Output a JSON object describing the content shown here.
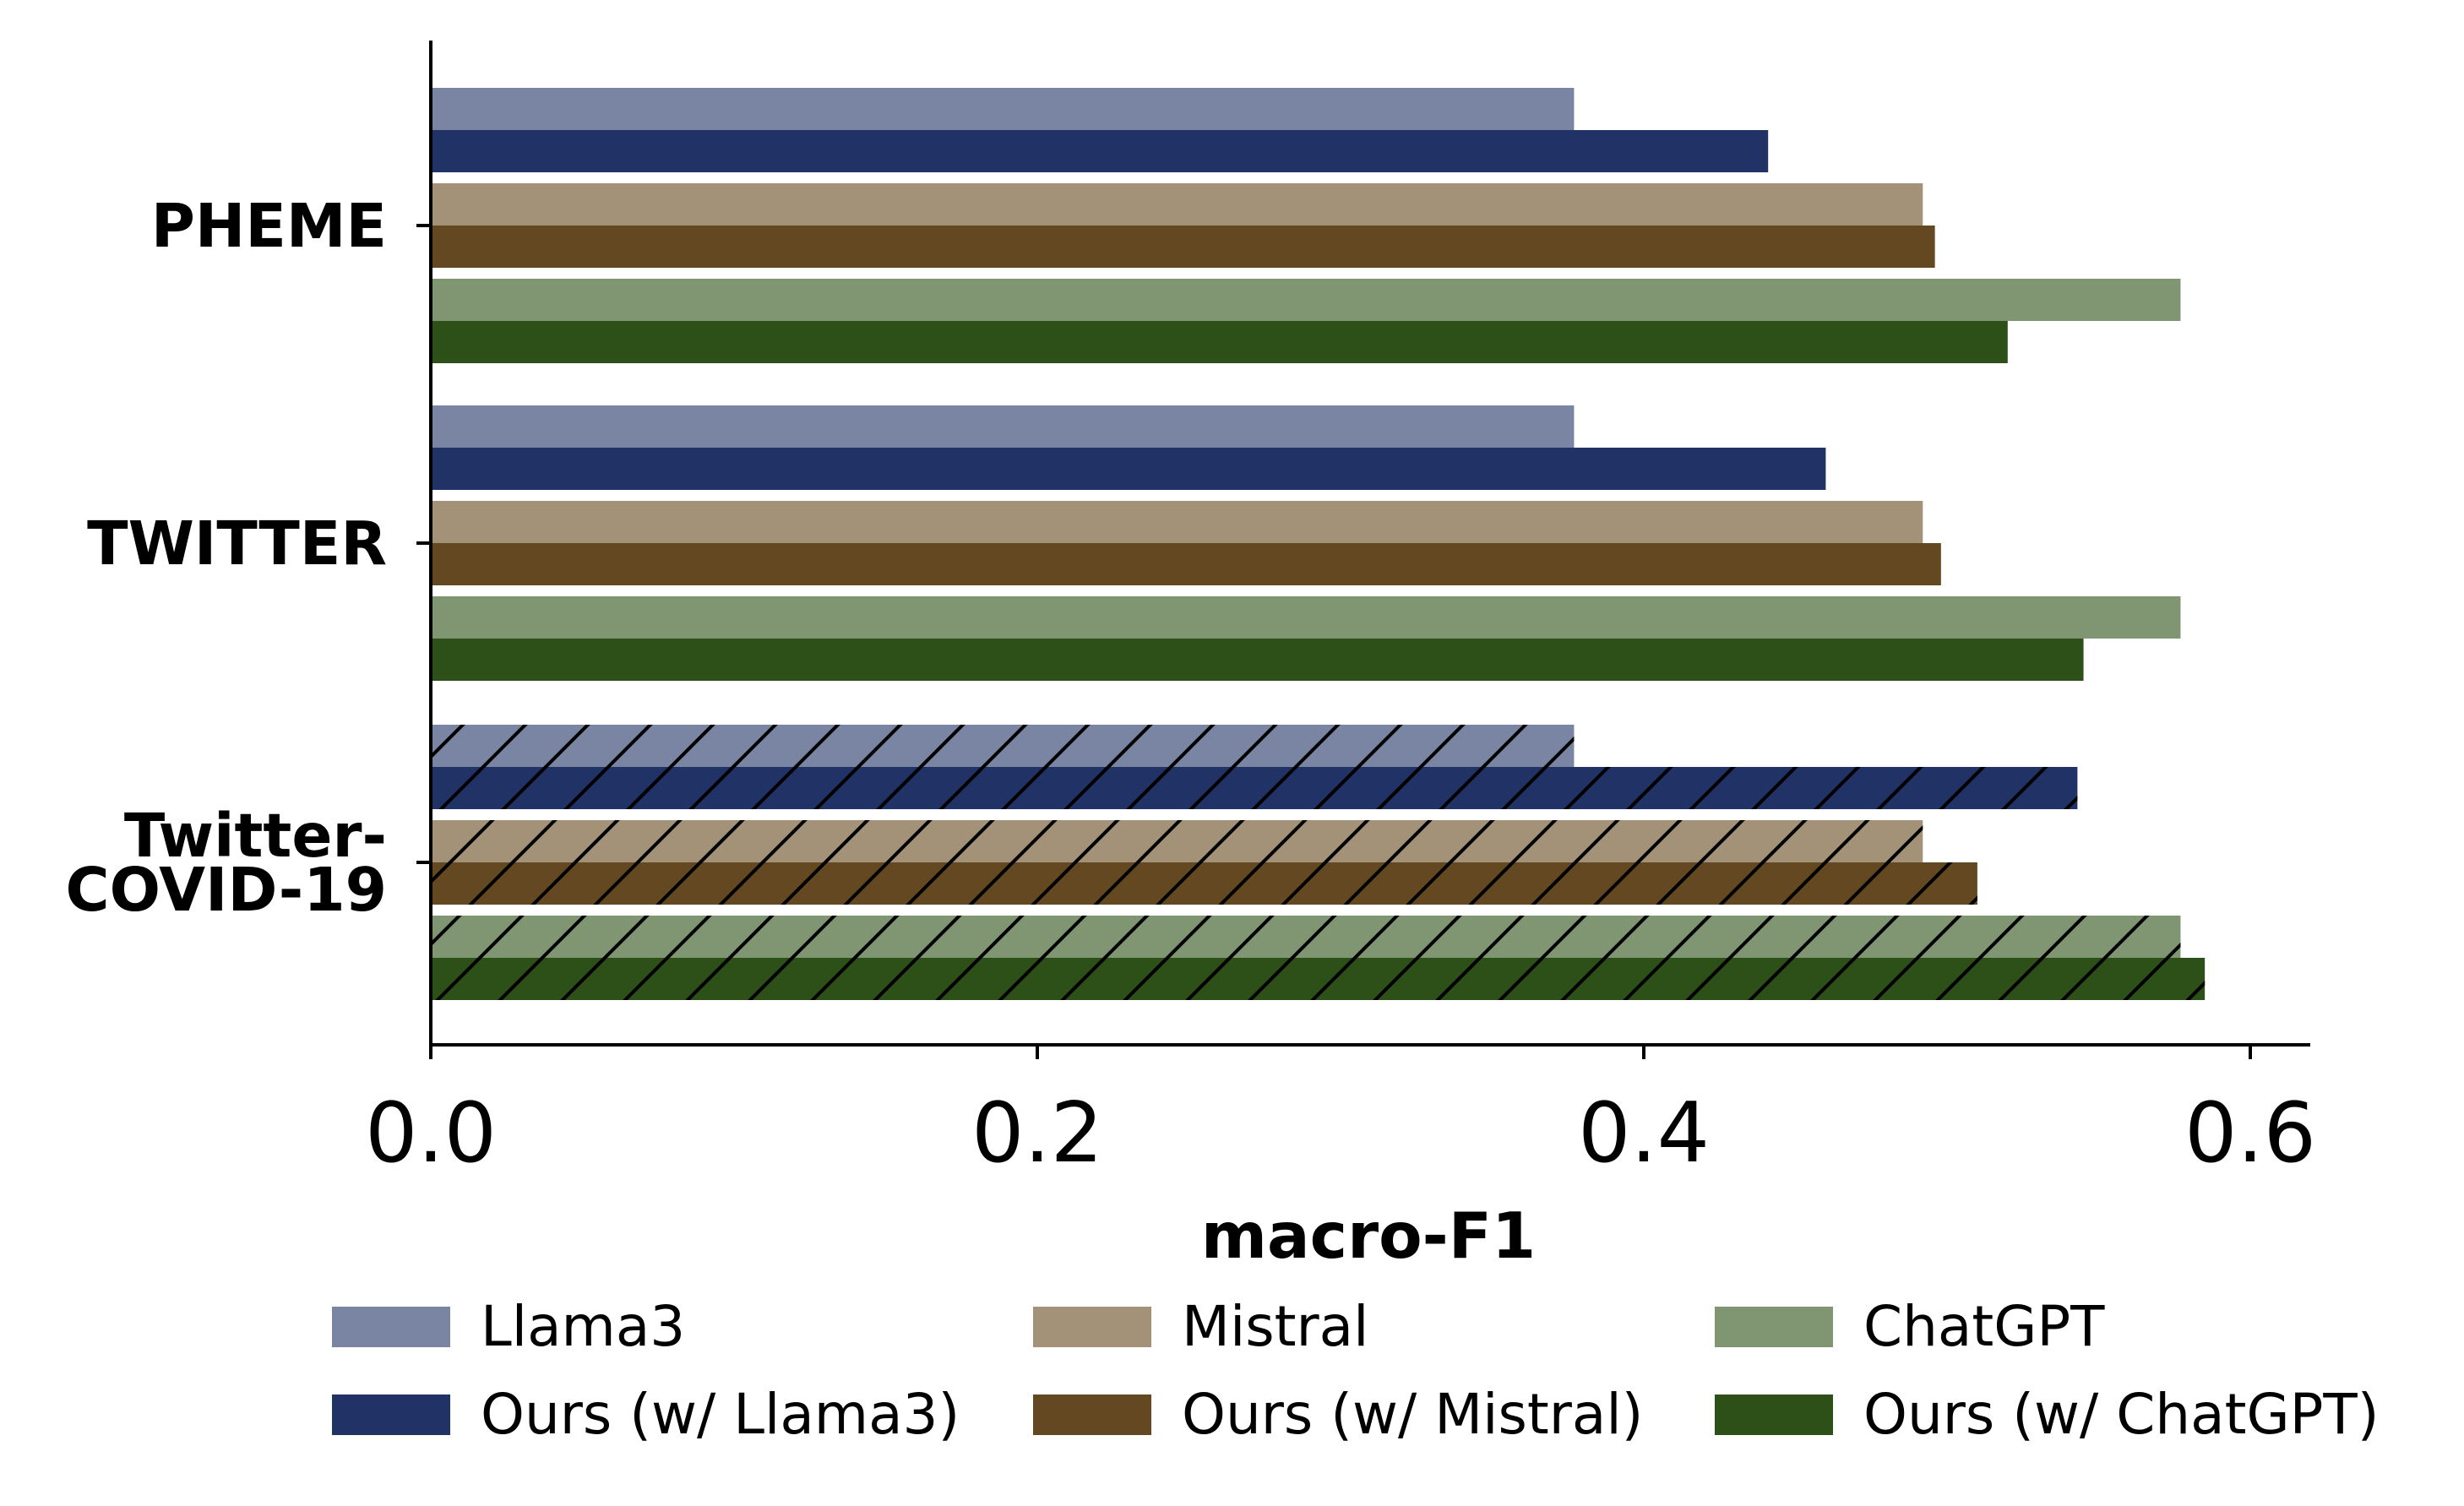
{
  "chart_data": {
    "type": "bar",
    "orientation": "horizontal",
    "categories": [
      "PHEME",
      "TWITTER",
      "Twitter-\nCOVID-19"
    ],
    "series": [
      {
        "name": "Llama3",
        "values": [
          0.377,
          0.377,
          0.377
        ],
        "color": "#7a84a3"
      },
      {
        "name": "Ours (w/ Llama3)",
        "values": [
          0.441,
          0.46,
          0.543
        ],
        "color": "#213266"
      },
      {
        "name": "Mistral",
        "values": [
          0.492,
          0.492,
          0.492
        ],
        "color": "#a39277"
      },
      {
        "name": "Ours (w/ Mistral)",
        "values": [
          0.496,
          0.498,
          0.51
        ],
        "color": "#634822"
      },
      {
        "name": "ChatGPT",
        "values": [
          0.577,
          0.577,
          0.577
        ],
        "color": "#809673"
      },
      {
        "name": "Ours (w/ ChatGPT)",
        "values": [
          0.52,
          0.545,
          0.585
        ],
        "color": "#2d4f18"
      }
    ],
    "hatched_categories": [
      "Twitter-\nCOVID-19"
    ],
    "xlabel": "macro-F1",
    "ylabel": "",
    "xlim": [
      0,
      0.62
    ],
    "xticks": [
      "0.0",
      "0.2",
      "0.4",
      "0.6"
    ],
    "grid": false,
    "legend": {
      "position": "bottom",
      "columns": 3
    }
  }
}
